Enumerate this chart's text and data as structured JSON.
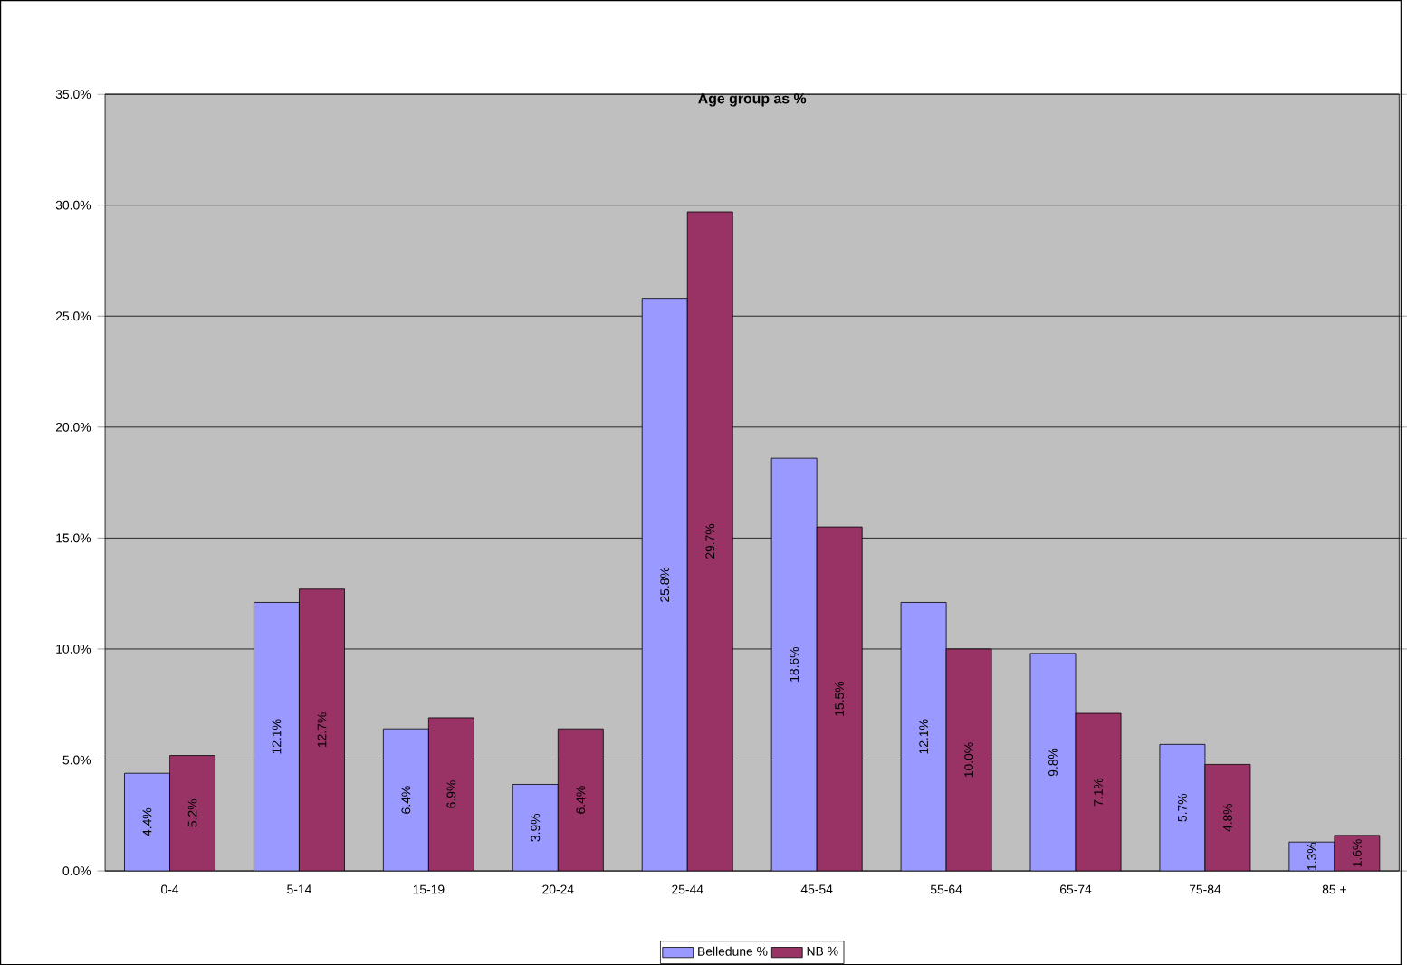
{
  "chart_data": {
    "type": "bar",
    "title": "Age group as %",
    "categories": [
      "0-4",
      "5-14",
      "15-19",
      "20-24",
      "25-44",
      "45-54",
      "55-64",
      "65-74",
      "75-84",
      "85 +"
    ],
    "series": [
      {
        "name": "Belledune %",
        "color": "#9999ff",
        "values": [
          4.4,
          12.1,
          6.4,
          3.9,
          25.8,
          18.6,
          12.1,
          9.8,
          5.7,
          1.3
        ],
        "value_labels": [
          "4.4%",
          "12.1%",
          "6.4%",
          "3.9%",
          "25.8%",
          "18.6%",
          "12.1%",
          "9.8%",
          "5.7%",
          "1.3%"
        ]
      },
      {
        "name": "NB %",
        "color": "#993366",
        "values": [
          5.2,
          12.7,
          6.9,
          6.4,
          29.7,
          15.5,
          10.0,
          7.1,
          4.8,
          1.6
        ],
        "value_labels": [
          "5.2%",
          "12.7%",
          "6.9%",
          "6.4%",
          "29.7%",
          "15.5%",
          "10.0%",
          "7.1%",
          "4.8%",
          "1.6%"
        ]
      }
    ],
    "ylim": [
      0,
      35
    ],
    "yticks": [
      {
        "value": 0,
        "label": "0.0%"
      },
      {
        "value": 5,
        "label": "5.0%"
      },
      {
        "value": 10,
        "label": "10.0%"
      },
      {
        "value": 15,
        "label": "15.0%"
      },
      {
        "value": 20,
        "label": "20.0%"
      },
      {
        "value": 25,
        "label": "25.0%"
      },
      {
        "value": 30,
        "label": "30.0%"
      },
      {
        "value": 35,
        "label": "35.0%"
      }
    ],
    "grid": "y",
    "legend": "bottom"
  }
}
